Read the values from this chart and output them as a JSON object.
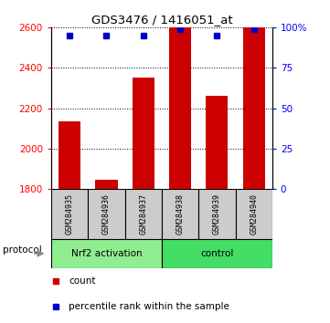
{
  "title": "GDS3476 / 1416051_at",
  "samples": [
    "GSM284935",
    "GSM284936",
    "GSM284937",
    "GSM284938",
    "GSM284939",
    "GSM284940"
  ],
  "counts": [
    2135,
    1845,
    2350,
    2600,
    2260,
    2600
  ],
  "percentile_ranks": [
    95,
    95,
    95,
    99,
    95,
    99
  ],
  "ylim_left": [
    1800,
    2600
  ],
  "ylim_right": [
    0,
    100
  ],
  "right_ticks": [
    0,
    25,
    50,
    75,
    100
  ],
  "right_tick_labels": [
    "0",
    "25",
    "50",
    "75",
    "100%"
  ],
  "left_ticks": [
    1800,
    2000,
    2200,
    2400,
    2600
  ],
  "groups": [
    {
      "label": "Nrf2 activation",
      "color": "#90EE90",
      "start": 0,
      "end": 2
    },
    {
      "label": "control",
      "color": "#44DD66",
      "start": 3,
      "end": 5
    }
  ],
  "bar_color": "#CC0000",
  "marker_color": "#0000CC",
  "bar_bottom": 1800,
  "group_label": "protocol",
  "legend_count_label": "count",
  "legend_pct_label": "percentile rank within the sample",
  "fig_width": 3.61,
  "fig_height": 3.54,
  "dpi": 100
}
